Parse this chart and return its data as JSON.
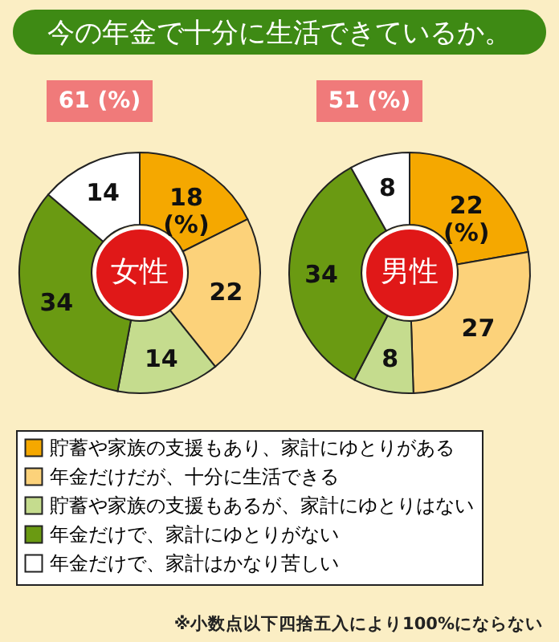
{
  "chart_data": {
    "type": "donut",
    "title": "今の年金で十分に生活できているか。",
    "categories": [
      "貯蓄や家族の支援もあり、家計にゆとりがある",
      "年金だけだが、十分に生活できる",
      "貯蓄や家族の支援もあるが、家計にゆとりはない",
      "年金だけで、家計にゆとりがない",
      "年金だけで、家計はかなり苦しい"
    ],
    "colors": [
      "#f5a800",
      "#fcd27a",
      "#c5dc8e",
      "#6a9a12",
      "#ffffff"
    ],
    "series": [
      {
        "name": "女性",
        "values": [
          18,
          22,
          14,
          34,
          14
        ],
        "value_labels": [
          "18\n(%)",
          "22",
          "14",
          "34",
          "14"
        ]
      },
      {
        "name": "男性",
        "values": [
          22,
          27,
          8,
          34,
          8
        ],
        "value_labels": [
          "22\n(%)",
          "27",
          "8",
          "34",
          "8"
        ]
      }
    ],
    "legend": "bottom",
    "annotations": [
      "61 (%)",
      "51 (%)",
      "※小数点以下四捨五入により100%にならない"
    ]
  }
}
